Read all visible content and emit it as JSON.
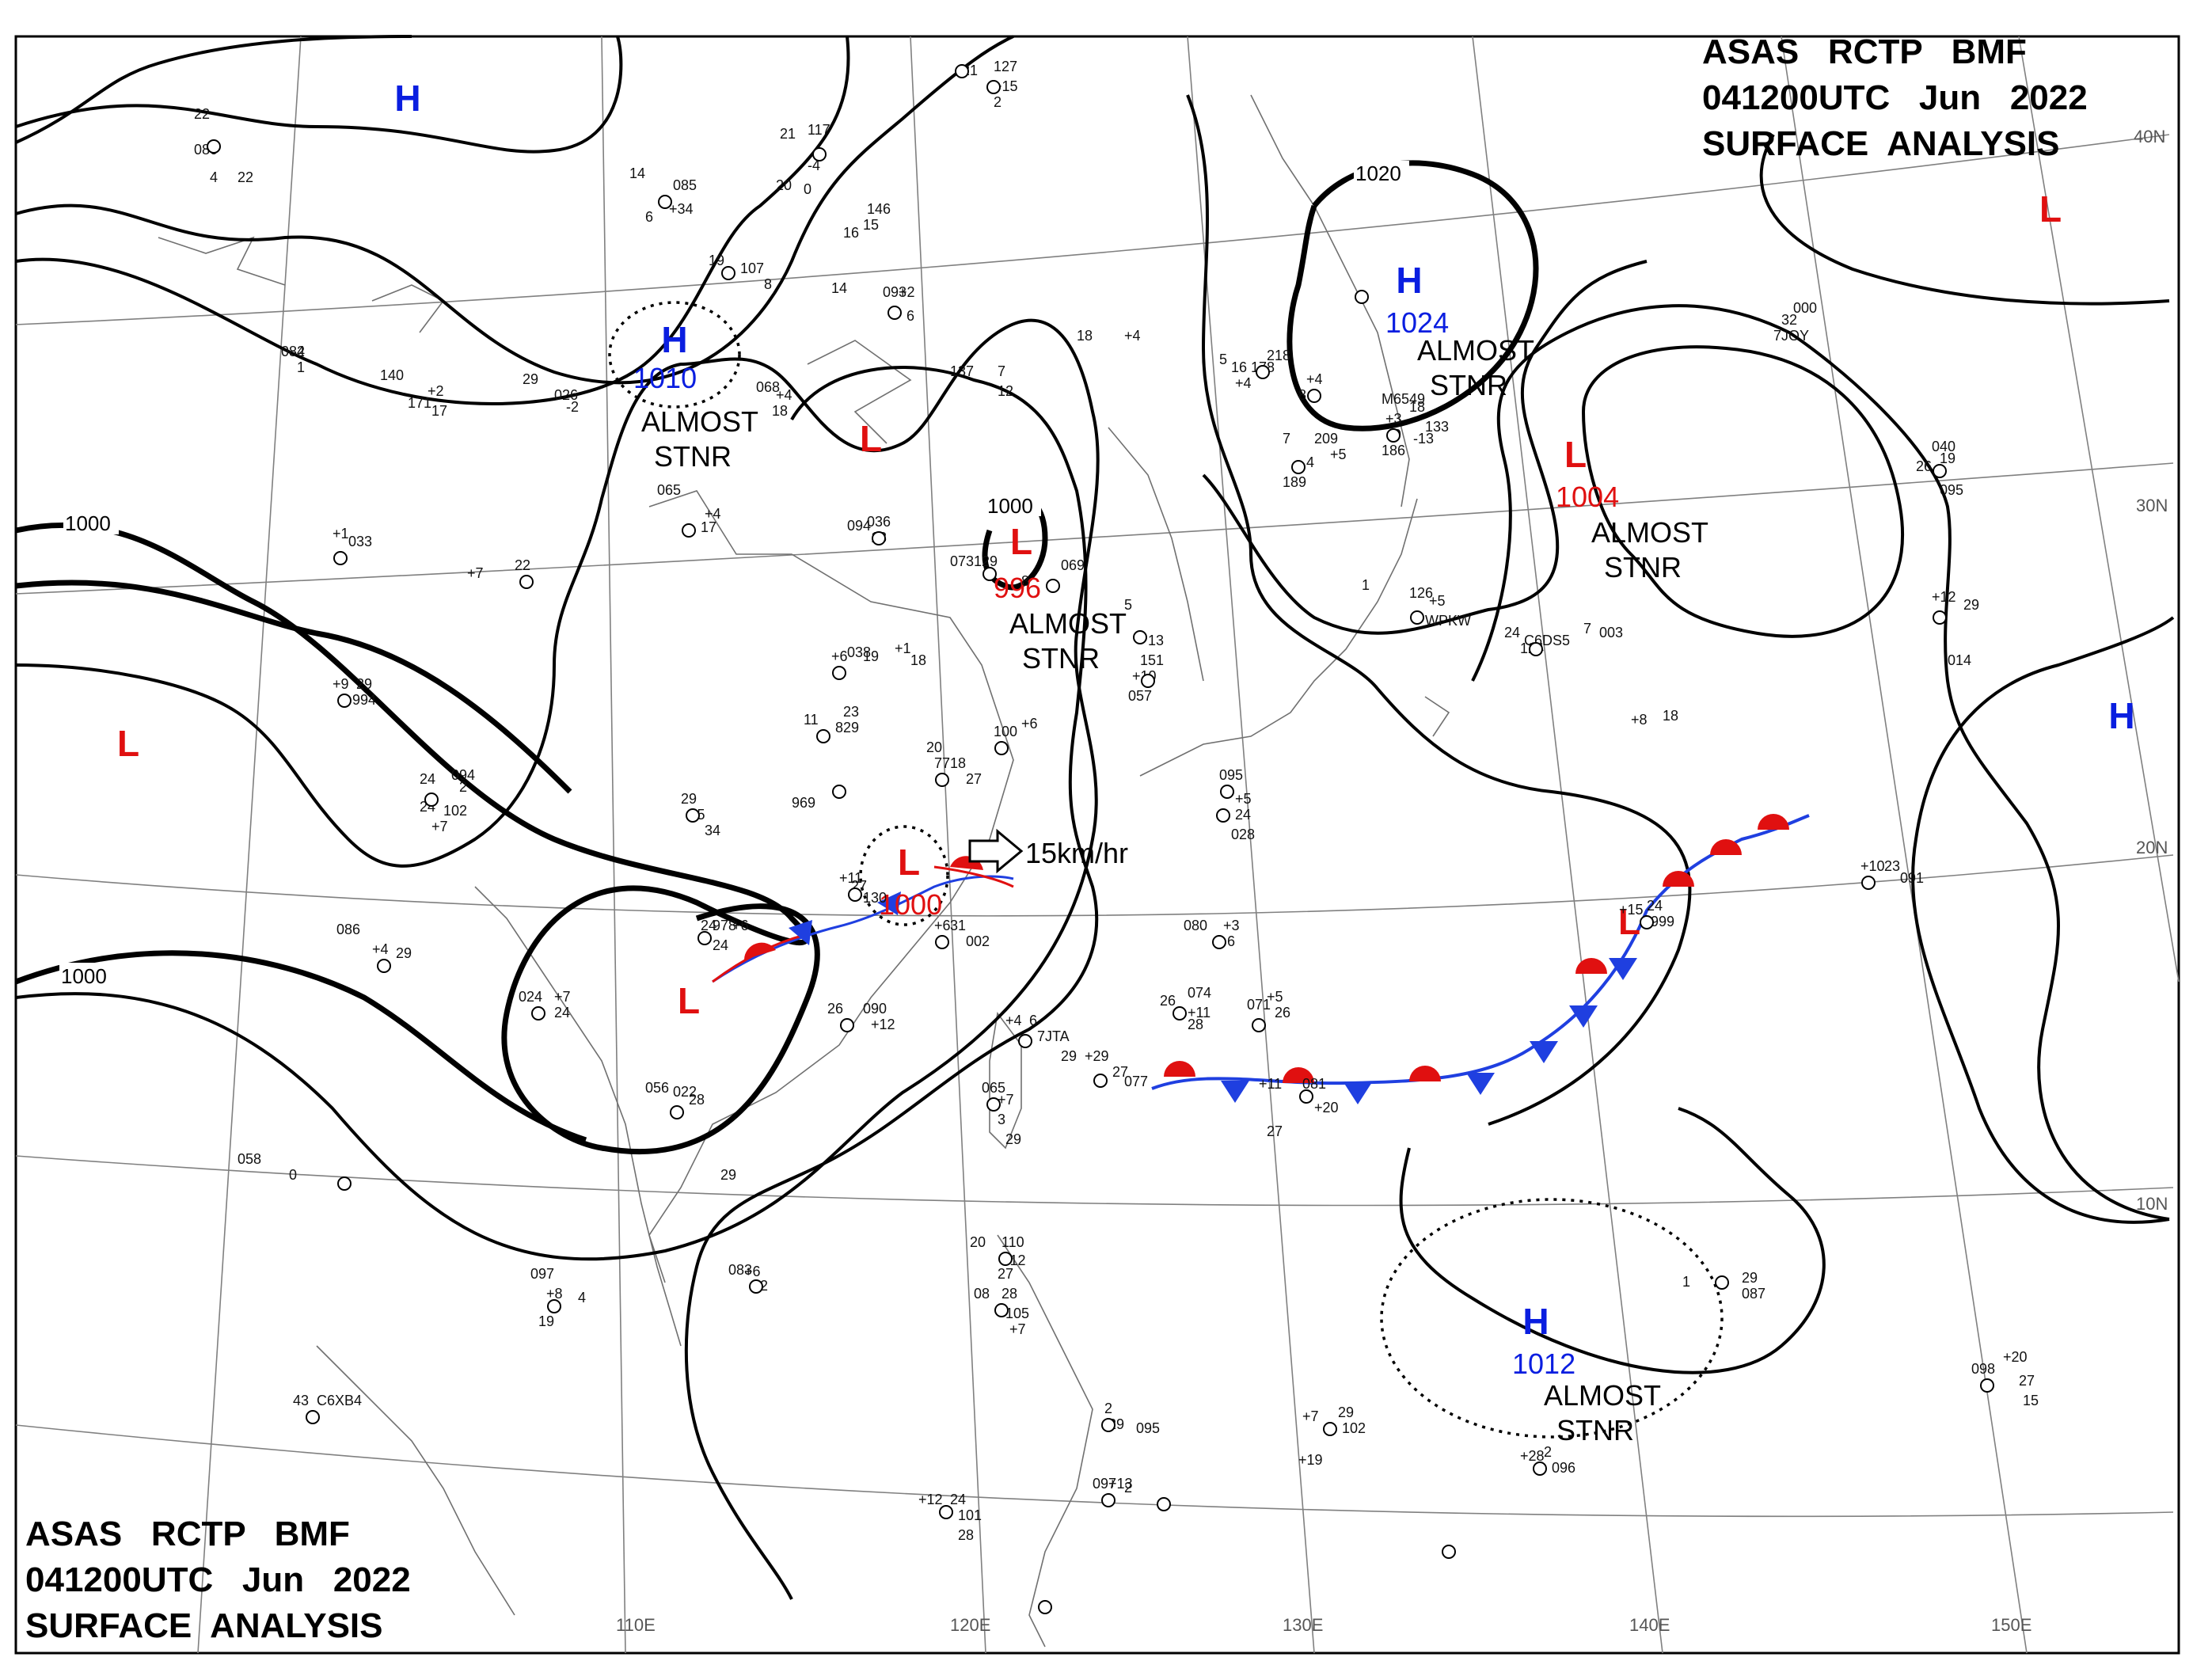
{
  "header_top": {
    "line1": "ASAS   RCTP   BMF",
    "line2": "041200UTC   Jun   2022",
    "line3": "SURFACE  ANALYSIS"
  },
  "header_bottom": {
    "line1": "ASAS   RCTP   BMF",
    "line2": "041200UTC   Jun   2022",
    "line3": "SURFACE  ANALYSIS"
  },
  "colors": {
    "high": "#0a1ee0",
    "low": "#e01010",
    "isobar": "#000000",
    "grid": "#808080",
    "coast": "#707070",
    "warm_front": "#e01010",
    "cold_front": "#1f3fe0"
  },
  "systems": [
    {
      "type": "H",
      "pressure": "",
      "note": ""
    },
    {
      "type": "H",
      "pressure": "1010",
      "note": "ALMOST\nSTNR"
    },
    {
      "type": "L",
      "pressure": "",
      "note": ""
    },
    {
      "type": "L",
      "pressure": "996",
      "note": "ALMOST\nSTNR"
    },
    {
      "type": "H",
      "pressure": "1024",
      "note": "ALMOST\nSTNR"
    },
    {
      "type": "L",
      "pressure": "1004",
      "note": "ALMOST\nSTNR"
    },
    {
      "type": "L",
      "pressure": "",
      "note": ""
    },
    {
      "type": "L",
      "pressure": "",
      "note": ""
    },
    {
      "type": "L",
      "pressure": "1000",
      "note": ""
    },
    {
      "type": "L",
      "pressure": "",
      "note": ""
    },
    {
      "type": "L",
      "pressure": "",
      "note": ""
    },
    {
      "type": "H",
      "pressure": "",
      "note": ""
    },
    {
      "type": "H",
      "pressure": "1012",
      "note": "ALMOST\nSTNR"
    }
  ],
  "isobar_labels": [
    "1000",
    "1000",
    "1000",
    "1020"
  ],
  "motion_label": "15km/hr",
  "latitude_labels": [
    "40N",
    "30N",
    "20N",
    "10N"
  ],
  "longitude_labels": [
    "110E",
    "120E",
    "130E",
    "140E",
    "150E"
  ],
  "stations": [
    "22",
    "080",
    "22",
    "4",
    "14",
    "085",
    "+34",
    "6",
    "21",
    "117",
    "-4",
    "0",
    "21",
    "127",
    "+15",
    "2",
    "19",
    "107",
    "8",
    "14",
    "093",
    "+2",
    "6",
    "20",
    "146",
    "15",
    "16",
    "082",
    "4",
    "1",
    "29",
    "026",
    "-2",
    "171",
    "140",
    "+2",
    "17",
    "068",
    "+4",
    "18",
    "137",
    "7",
    "12",
    "18",
    "+4",
    "5",
    "16",
    "178",
    "+4",
    "218",
    "+4",
    "8",
    "7",
    "209",
    "+5",
    "4",
    "189",
    "+3",
    "9",
    "186",
    "M6549",
    "18",
    "133",
    "-13",
    "7JOY",
    "32",
    "000",
    "26",
    "040",
    "19",
    "095",
    "+1",
    "033",
    "+7",
    "22",
    "065",
    "+4",
    "17",
    "094",
    "036",
    "18",
    "073",
    "129",
    "8",
    "069",
    "5",
    "13",
    "151",
    "+10",
    "057",
    "1",
    "126",
    "+5",
    "WPKW",
    "24",
    "124",
    "C6DS5",
    "7",
    "003",
    "+12",
    "29",
    "014",
    "+9",
    "29",
    "994",
    "+6",
    "19",
    "038",
    "+1",
    "18",
    "11",
    "23",
    "829",
    "+8",
    "18",
    "100",
    "+6",
    "24",
    "094",
    "2",
    "24",
    "102",
    "+7",
    "29",
    "+5",
    "34",
    "969",
    "20",
    "771",
    "8",
    "27",
    "095",
    "+5",
    "24",
    "028",
    "+15",
    "24",
    "999",
    "+10",
    "23",
    "091",
    "+11",
    "27",
    "130",
    "+6",
    "31",
    "002",
    "24",
    "978",
    "+6",
    "24",
    "086",
    "+4",
    "29",
    "024",
    "+7",
    "24",
    "080",
    "+3",
    "6",
    "26",
    "090",
    "+12",
    "26",
    "074",
    "+11",
    "28",
    "071",
    "+5",
    "26",
    "+4",
    "6",
    "7JTA",
    "29",
    "+29",
    "27",
    "077",
    "+11",
    "081",
    "+20",
    "27",
    "056",
    "022",
    "28",
    "065",
    "+7",
    "3",
    "29",
    "058",
    "0",
    "29",
    "097",
    "+8",
    "4",
    "19",
    "083",
    "+6",
    "2",
    "20",
    "110",
    "+12",
    "27",
    "08",
    "28",
    "105",
    "+7",
    "1",
    "29",
    "087",
    "43",
    "C6XB4",
    "098",
    "+20",
    "27",
    "15",
    "+7",
    "29",
    "102",
    "+19",
    "2",
    "29",
    "095",
    "+28",
    "2",
    "096",
    "+12",
    "24",
    "101",
    "28",
    "097",
    "+13",
    "2"
  ]
}
